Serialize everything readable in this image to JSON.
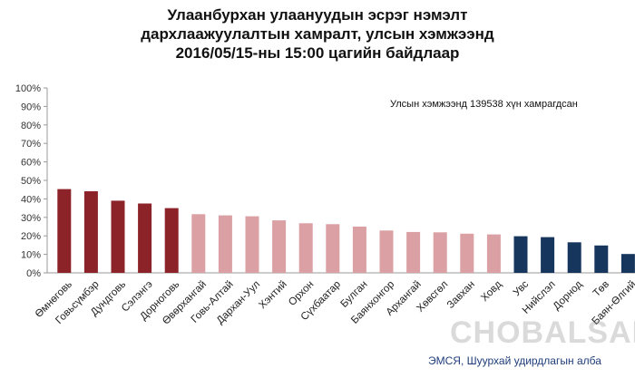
{
  "chart_data": {
    "type": "bar",
    "title": [
      "Улаанбурхан улаануудын эсрэг нэмэлт",
      "дархлаажуулалтын хамралт, улсын хэмжээнд",
      "2016/05/15-ны 15:00 цагийн байдлаар"
    ],
    "annotation": "Улсын хэмжээнд 139538 хүн хамрагдсан",
    "source": "ЭМСЯ, Шуурхай удирдлагын алба",
    "watermark": "CHOBALSAN MN",
    "xlabel": "",
    "ylabel": "",
    "ylim": [
      0,
      100
    ],
    "yticks": [
      "0%",
      "10%",
      "20%",
      "30%",
      "40%",
      "50%",
      "60%",
      "70%",
      "80%",
      "90%",
      "100%"
    ],
    "grid": false,
    "legend": "none",
    "categories": [
      "Өмнөговь",
      "Говьсүмбэр",
      "Дундговь",
      "Сэлэнгэ",
      "Дорноговь",
      "Өвөрхангай",
      "Говь-Алтай",
      "Дархан-Уул",
      "Хэнтий",
      "Орхон",
      "Сүхбаатар",
      "Булган",
      "Баянхонгор",
      "Архангай",
      "Хөвсгөл",
      "Завхан",
      "Ховд",
      "Увс",
      "Нийслэл",
      "Дорнод",
      "Төв",
      "Баян-Өлгий"
    ],
    "values": [
      45.3,
      44.1,
      39.0,
      37.5,
      35.0,
      31.7,
      31.1,
      30.6,
      28.4,
      26.8,
      26.3,
      25.0,
      22.9,
      22.1,
      21.9,
      21.2,
      20.8,
      19.8,
      19.3,
      16.5,
      14.8,
      10.2
    ],
    "colors": [
      "#8b2328",
      "#8b2328",
      "#8b2328",
      "#8b2328",
      "#8b2328",
      "#dba0a3",
      "#dba0a3",
      "#dba0a3",
      "#dba0a3",
      "#dba0a3",
      "#dba0a3",
      "#dba0a3",
      "#dba0a3",
      "#dba0a3",
      "#dba0a3",
      "#dba0a3",
      "#dba0a3",
      "#17365d",
      "#17365d",
      "#17365d",
      "#17365d",
      "#17365d"
    ]
  }
}
